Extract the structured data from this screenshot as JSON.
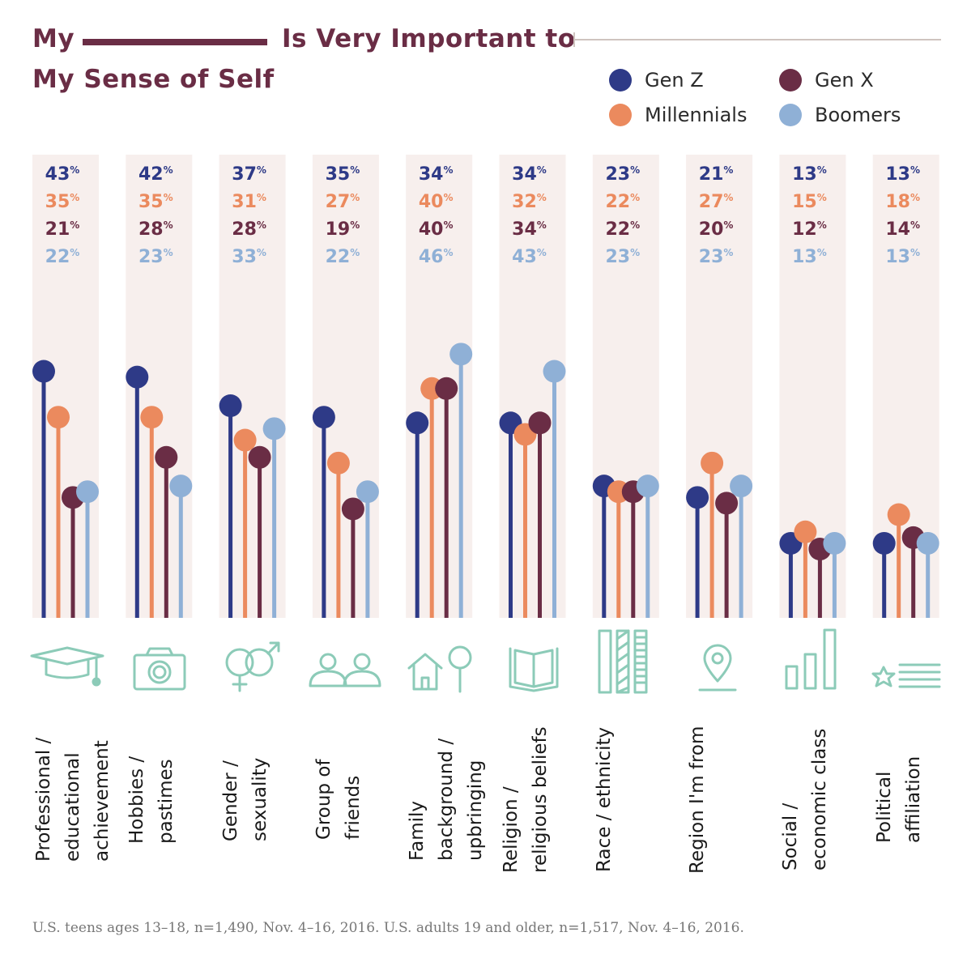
{
  "title": {
    "part1": "My",
    "part2": "Is Very Important to",
    "part3": "My Sense of Self"
  },
  "legend": [
    {
      "name": "Gen Z",
      "color": "#2e3a87"
    },
    {
      "name": "Gen X",
      "color": "#6a2d45"
    },
    {
      "name": "Millennials",
      "color": "#eb8a5e"
    },
    {
      "name": "Boomers",
      "color": "#8fb0d6"
    }
  ],
  "chart_data": {
    "type": "lollipop",
    "ylim": [
      0,
      100
    ],
    "unit": "%",
    "categories": [
      "Professional / educational achievement",
      "Hobbies / pastimes",
      "Gender / sexuality",
      "Group of friends",
      "Family background / upbringing",
      "Religion / religious beliefs",
      "Race / ethnicity",
      "Region I'm from",
      "Social / economic class",
      "Political affiliation"
    ],
    "series": [
      {
        "name": "Gen Z",
        "color": "#2e3a87",
        "values": [
          43,
          42,
          37,
          35,
          34,
          34,
          23,
          21,
          13,
          13
        ]
      },
      {
        "name": "Millennials",
        "color": "#eb8a5e",
        "values": [
          35,
          35,
          31,
          27,
          40,
          32,
          22,
          27,
          15,
          18
        ]
      },
      {
        "name": "Gen X",
        "color": "#6a2d45",
        "values": [
          21,
          28,
          28,
          19,
          40,
          34,
          22,
          20,
          12,
          14
        ]
      },
      {
        "name": "Boomers",
        "color": "#8fb0d6",
        "values": [
          22,
          23,
          33,
          22,
          46,
          43,
          23,
          23,
          13,
          13
        ]
      }
    ],
    "category_labels": [
      "Professional /\neducational\nachievement",
      "Hobbies /\npastimes",
      "Gender /\nsexuality",
      "Group of\nfriends",
      "Family\nbackground /\nupbringing",
      "Religion /\nreligious beliefs",
      "Race / ethnicity",
      "Region I'm from",
      "Social /\neconomic class",
      "Political\naffiliation"
    ],
    "icons": [
      "graduation-cap-icon",
      "camera-icon",
      "gender-symbols-icon",
      "group-of-people-icon",
      "house-and-tree-icon",
      "open-book-icon",
      "striped-bars-icon",
      "location-pin-icon",
      "bar-chart-icon",
      "star-and-lines-icon"
    ]
  },
  "icon_color": "#8ccbb8",
  "panel_color": "#f7efed",
  "footnote": "U.S. teens ages 13–18, n=1,490, Nov. 4–16, 2016. U.S. adults 19 and older, n=1,517, Nov. 4–16, 2016."
}
